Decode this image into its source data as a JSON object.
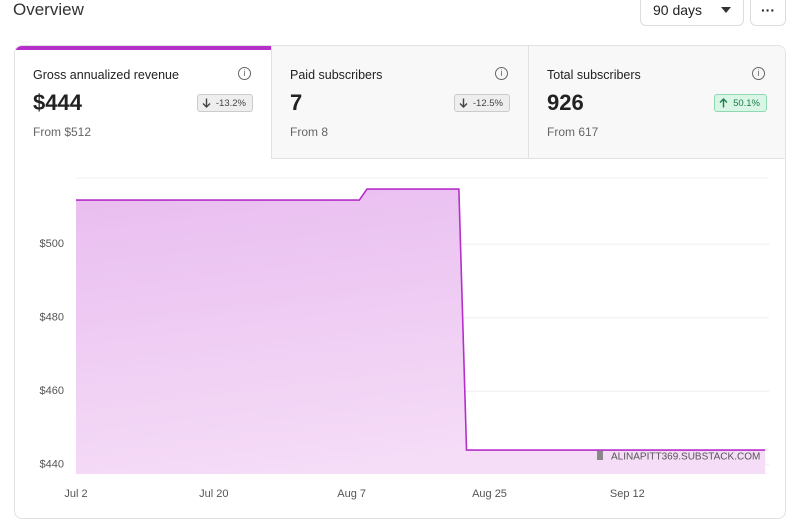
{
  "header": {
    "title": "Overview",
    "period": "90 days",
    "more": "···"
  },
  "cards": [
    {
      "title": "Gross annualized revenue",
      "value": "$444",
      "change": "-13.2%",
      "from": "From $512"
    },
    {
      "title": "Paid subscribers",
      "value": "7",
      "change": "-12.5%",
      "from": "From 8"
    },
    {
      "title": "Total subscribers",
      "value": "926",
      "change": "50.1%",
      "from": "From 617"
    }
  ],
  "chart_data": {
    "type": "area",
    "annotation": "ALINAPITT369.SUBSTACK.COM",
    "x": [
      0,
      37,
      38,
      50,
      51,
      90
    ],
    "series": [
      {
        "color": "#b52fc9",
        "values": [
          512,
          512,
          515,
          515,
          444,
          444
        ]
      }
    ],
    "xlim": [
      0,
      90.5
    ],
    "xticks": [
      {
        "value": 0,
        "label": "Jul 2"
      },
      {
        "value": 18,
        "label": "Jul 20"
      },
      {
        "value": 36,
        "label": "Aug 7"
      },
      {
        "value": 54,
        "label": "Aug 25"
      },
      {
        "value": 72,
        "label": "Sep 12"
      }
    ],
    "ylim": [
      437.5,
      518
    ],
    "yticks": [
      {
        "value": 440,
        "label": "$440"
      },
      {
        "value": 460,
        "label": "$460"
      },
      {
        "value": 480,
        "label": "$480"
      },
      {
        "value": 500,
        "label": "$500"
      }
    ],
    "grid": true
  }
}
